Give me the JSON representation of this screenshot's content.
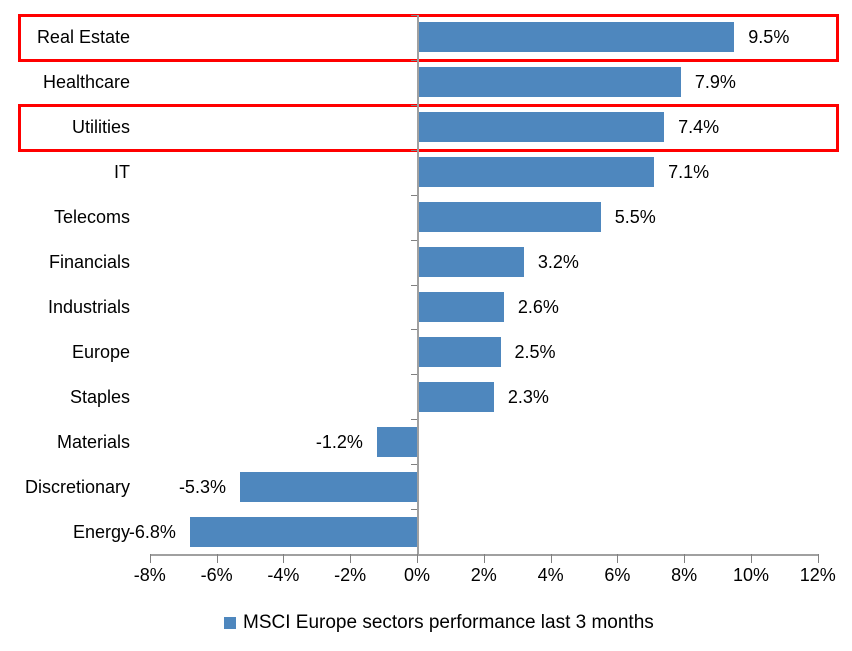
{
  "chart_data": {
    "type": "bar",
    "orientation": "horizontal",
    "title": "",
    "legend": "MSCI Europe sectors performance last 3 months",
    "legend_position": "bottom",
    "categories": [
      "Real Estate",
      "Healthcare",
      "Utilities",
      "IT",
      "Telecoms",
      "Financials",
      "Industrials",
      "Europe",
      "Staples",
      "Materials",
      "Discretionary",
      "Energy"
    ],
    "values": [
      9.5,
      7.9,
      7.4,
      7.1,
      5.5,
      3.2,
      2.6,
      2.5,
      2.3,
      -1.2,
      -5.3,
      -6.8
    ],
    "value_labels": [
      "9.5%",
      "7.9%",
      "7.4%",
      "7.1%",
      "5.5%",
      "3.2%",
      "2.6%",
      "2.5%",
      "2.3%",
      "-1.2%",
      "-5.3%",
      "-6.8%"
    ],
    "xlim": [
      -8,
      12
    ],
    "x_tick_values": [
      -8,
      -6,
      -4,
      -2,
      0,
      2,
      4,
      6,
      8,
      10,
      12
    ],
    "x_tick_labels": [
      "-8%",
      "-6%",
      "-4%",
      "-2%",
      "0%",
      "2%",
      "4%",
      "6%",
      "8%",
      "10%",
      "12%"
    ],
    "highlighted_categories": [
      "Real Estate",
      "Utilities"
    ],
    "grid": false,
    "colors": {
      "bar": "#4e87be",
      "highlight_box": "#ff0000",
      "axis": "#a0a0a0",
      "tick": "#808080",
      "text": "#000000",
      "background": "#ffffff"
    }
  }
}
